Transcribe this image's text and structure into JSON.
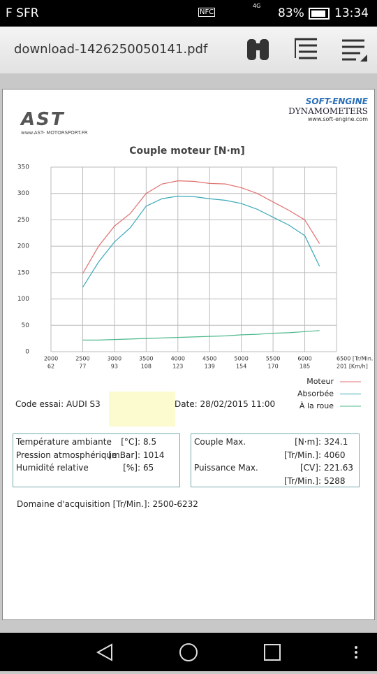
{
  "status_bar": {
    "carrier": "F SFR",
    "nfc": "NFC",
    "network": "4G",
    "battery": "83%",
    "time": "13:34"
  },
  "toolbar": {
    "file_name": "download-1426250050141.pdf"
  },
  "document": {
    "left_logo": {
      "name": "AST",
      "url": "www.AST- MOTORSPORT.FR"
    },
    "right_logo": {
      "name": "SOFT-ENGINE",
      "subtitle": "DYNAMOMETERS",
      "url": "www.soft-engine.com"
    },
    "code_essai": "Code essai: AUDI S3",
    "date": "Date: 28/02/2015 11:00",
    "left_table": [
      {
        "label": "Température ambiante",
        "unit": "[°C]:",
        "value": "8.5"
      },
      {
        "label": "Pression atmosphérique",
        "unit": "[mBar]:",
        "value": "1014"
      },
      {
        "label": "Humidité relative",
        "unit": "[%]:",
        "value": "65"
      }
    ],
    "right_table": [
      {
        "label": "Couple Max.",
        "unit": "[N·m]:",
        "value": "324.1"
      },
      {
        "unit": "[Tr/Min.]:",
        "value": "4060"
      },
      {
        "label": "Puissance Max.",
        "unit": "[CV]:",
        "value": "221.63"
      },
      {
        "unit": "[Tr/Min.]:",
        "value": "5288"
      }
    ],
    "acquisition": "Domaine d'acquisition [Tr/Min.]: 2500-6232"
  },
  "chart_data": {
    "type": "line",
    "title": "Couple moteur  [N·m]",
    "x": [
      2500,
      2750,
      3000,
      3250,
      3500,
      3750,
      4000,
      4250,
      4500,
      4750,
      5000,
      5250,
      5500,
      5750,
      6000,
      6232
    ],
    "series": [
      {
        "name": "Moteur",
        "color": "#e07070",
        "values": [
          148,
          200,
          238,
          262,
          300,
          318,
          324,
          323,
          319,
          318,
          311,
          300,
          284,
          268,
          250,
          205
        ]
      },
      {
        "name": "Absorbée",
        "color": "#3aa8b8",
        "values": [
          122,
          170,
          208,
          235,
          276,
          290,
          295,
          294,
          290,
          287,
          281,
          270,
          255,
          240,
          220,
          162
        ]
      },
      {
        "name": "À la roue",
        "color": "#4cb88a",
        "values": [
          22,
          22,
          23,
          24,
          25,
          26,
          27,
          28,
          29,
          30,
          32,
          33,
          35,
          36,
          38,
          40
        ]
      }
    ],
    "xlim": [
      2000,
      6500
    ],
    "xticks": [
      2000,
      2500,
      3000,
      3500,
      4000,
      4500,
      5000,
      5500,
      6000,
      {
        "value": 6500,
        "label": "6500 [Tr/Min."
      }
    ],
    "kmh_labels": [
      "62",
      "77",
      "93",
      "108",
      "123",
      "139",
      "154",
      "170",
      "185",
      "201 [Km/h]"
    ],
    "ylim": [
      0,
      350
    ],
    "yticks": [
      0,
      50,
      100,
      150,
      200,
      250,
      300,
      350
    ],
    "grid": true,
    "legend": "bottom-right"
  }
}
